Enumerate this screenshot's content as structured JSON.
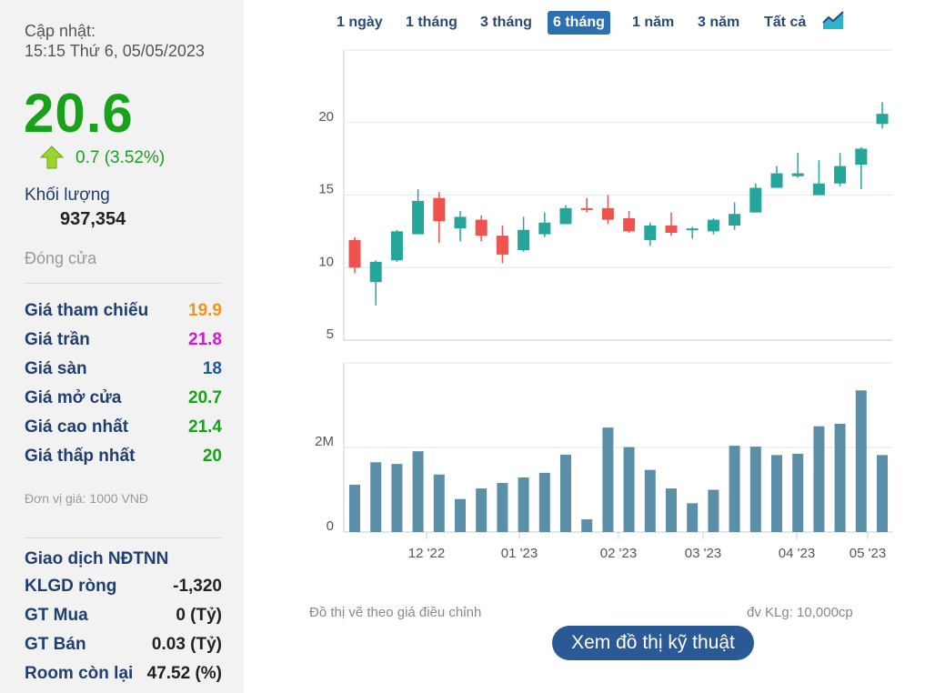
{
  "sidebar": {
    "update_label": "Cập nhật:",
    "update_time": "15:15 Thứ 6, 05/05/2023",
    "price": "20.6",
    "change": "0.7 (3.52%)",
    "volume_label": "Khối lượng",
    "volume_value": "937,354",
    "close_label": "Đóng cửa",
    "stats": [
      {
        "label": "Giá tham chiếu",
        "value": "19.9",
        "color": "#f0961e"
      },
      {
        "label": "Giá trần",
        "value": "21.8",
        "color": "#d21ad2"
      },
      {
        "label": "Giá sàn",
        "value": "18",
        "color": "#1e5aa0"
      },
      {
        "label": "Giá mở cửa",
        "value": "20.7",
        "color": "#1aa11a"
      },
      {
        "label": "Giá cao nhất",
        "value": "21.4",
        "color": "#1aa11a"
      },
      {
        "label": "Giá thấp nhất",
        "value": "20",
        "color": "#1aa11a"
      }
    ],
    "unit_note": "Đơn vị giá: 1000 VNĐ",
    "foreign_title": "Giao dịch NĐTNN",
    "foreign": [
      {
        "label": "KLGD ròng",
        "value": "-1,320"
      },
      {
        "label": "GT Mua",
        "value": "0 (Tỷ)"
      },
      {
        "label": "GT Bán",
        "value": "0.03 (Tỷ)"
      },
      {
        "label": "Room còn lại",
        "value": "47.52 (%)"
      }
    ]
  },
  "range_tabs": [
    "1 ngày",
    "1 tháng",
    "3 tháng",
    "6 tháng",
    "1 năm",
    "3 năm",
    "Tất cả"
  ],
  "active_tab": "6 tháng",
  "footer": {
    "adjusted_note": "Đồ thị vẽ theo giá điều chỉnh",
    "volume_unit": "đv KLg: 10,000cp",
    "technical_button": "Xem đồ thị kỹ thuật"
  },
  "colors": {
    "up": "#26a69a",
    "down": "#ef5350",
    "volume": "#5b8fa8",
    "accent": "#2d6fb0"
  },
  "chart_data": [
    {
      "type": "candlestick",
      "y_ticks": [
        5,
        10,
        15,
        20
      ],
      "ylim": [
        5,
        25
      ],
      "x_ticks": [
        "12 '22",
        "01 '23",
        "02 '23",
        "03 '23",
        "04 '23",
        "05 '23"
      ],
      "candles": [
        {
          "open": 11.9,
          "high": 12.1,
          "low": 9.6,
          "close": 10.0
        },
        {
          "open": 9.0,
          "high": 10.5,
          "low": 7.4,
          "close": 10.4
        },
        {
          "open": 10.5,
          "high": 12.6,
          "low": 10.4,
          "close": 12.5
        },
        {
          "open": 12.3,
          "high": 15.4,
          "low": 12.3,
          "close": 14.6
        },
        {
          "open": 14.8,
          "high": 15.2,
          "low": 11.7,
          "close": 13.2
        },
        {
          "open": 12.7,
          "high": 13.9,
          "low": 11.8,
          "close": 13.5
        },
        {
          "open": 13.3,
          "high": 13.6,
          "low": 11.8,
          "close": 12.2
        },
        {
          "open": 12.2,
          "high": 12.9,
          "low": 10.3,
          "close": 10.9
        },
        {
          "open": 11.2,
          "high": 13.5,
          "low": 11.1,
          "close": 12.6
        },
        {
          "open": 12.3,
          "high": 13.8,
          "low": 12.1,
          "close": 13.1
        },
        {
          "open": 13.0,
          "high": 14.3,
          "low": 13.0,
          "close": 14.1
        },
        {
          "open": 14.1,
          "high": 14.8,
          "low": 13.8,
          "close": 14.0
        },
        {
          "open": 14.1,
          "high": 15.0,
          "low": 13.0,
          "close": 13.3
        },
        {
          "open": 13.4,
          "high": 13.9,
          "low": 12.4,
          "close": 12.5
        },
        {
          "open": 11.9,
          "high": 13.1,
          "low": 11.5,
          "close": 12.9
        },
        {
          "open": 12.9,
          "high": 13.8,
          "low": 12.2,
          "close": 12.4
        },
        {
          "open": 12.6,
          "high": 12.8,
          "low": 12.0,
          "close": 12.7
        },
        {
          "open": 12.5,
          "high": 13.4,
          "low": 12.3,
          "close": 13.3
        },
        {
          "open": 12.9,
          "high": 14.5,
          "low": 12.6,
          "close": 13.7
        },
        {
          "open": 13.8,
          "high": 15.8,
          "low": 13.8,
          "close": 15.5
        },
        {
          "open": 15.5,
          "high": 17.0,
          "low": 15.5,
          "close": 16.5
        },
        {
          "open": 16.3,
          "high": 17.9,
          "low": 16.2,
          "close": 16.5
        },
        {
          "open": 15.0,
          "high": 17.4,
          "low": 15.0,
          "close": 15.8
        },
        {
          "open": 15.8,
          "high": 17.9,
          "low": 15.6,
          "close": 17.0
        },
        {
          "open": 17.1,
          "high": 18.3,
          "low": 15.4,
          "close": 18.2
        },
        {
          "open": 19.9,
          "high": 21.4,
          "low": 19.6,
          "close": 20.6
        }
      ]
    },
    {
      "type": "bar",
      "y_ticks": [
        {
          "value": 0,
          "label": "0"
        },
        {
          "value": 2000000,
          "label": "2M"
        }
      ],
      "ylim": [
        0,
        4000000
      ],
      "values": [
        1120000,
        1650000,
        1610000,
        1910000,
        1360000,
        780000,
        1030000,
        1160000,
        1290000,
        1400000,
        1830000,
        300000,
        2470000,
        2010000,
        1470000,
        1030000,
        680000,
        1000000,
        2040000,
        2020000,
        1820000,
        1850000,
        2500000,
        2560000,
        3350000,
        1820000
      ]
    }
  ]
}
